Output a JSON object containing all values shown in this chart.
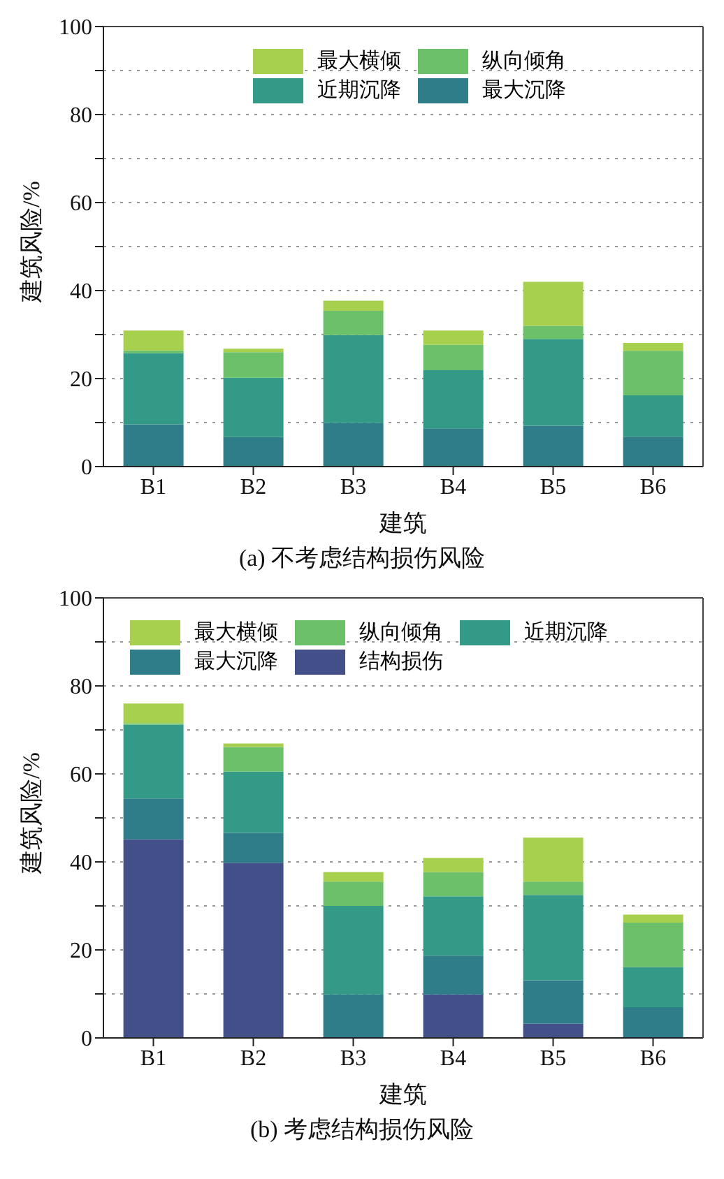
{
  "chart_data": [
    {
      "type": "bar",
      "title": "(a) 不考虑结构损伤风险",
      "xlabel": "建筑",
      "ylabel": "建筑风险/%",
      "categories": [
        "B1",
        "B2",
        "B3",
        "B4",
        "B5",
        "B6"
      ],
      "stacked": true,
      "ylim": [
        0,
        100
      ],
      "yticks": [
        0,
        {
          "value": 10,
          "label": null
        },
        20,
        {
          "value": 30,
          "label": null
        },
        40,
        {
          "value": 50,
          "label": null
        },
        60,
        {
          "value": 70,
          "label": null
        },
        80,
        {
          "value": 90,
          "label": null
        },
        100
      ],
      "grid": "y",
      "legend": "top",
      "series": [
        {
          "name": "最大沉降",
          "color": "#2f7d89",
          "values": [
            9.6,
            6.7,
            9.9,
            8.7,
            9.3,
            6.8
          ]
        },
        {
          "name": "近期沉降",
          "color": "#339a88",
          "values": [
            16.2,
            13.5,
            20.0,
            13.2,
            19.7,
            9.4
          ]
        },
        {
          "name": "纵向倾角",
          "color": "#6cc06a",
          "values": [
            0.6,
            5.8,
            5.5,
            5.8,
            3.0,
            10.1
          ]
        },
        {
          "name": "最大横倾",
          "color": "#a6d04e",
          "values": [
            4.5,
            0.8,
            2.3,
            3.2,
            10.0,
            1.8
          ]
        }
      ]
    },
    {
      "type": "bar",
      "title": "(b) 考虑结构损伤风险",
      "xlabel": "建筑",
      "ylabel": "建筑风险/%",
      "categories": [
        "B1",
        "B2",
        "B3",
        "B4",
        "B5",
        "B6"
      ],
      "stacked": true,
      "ylim": [
        0,
        100
      ],
      "yticks": [
        0,
        {
          "value": 10,
          "label": null
        },
        20,
        {
          "value": 30,
          "label": null
        },
        40,
        {
          "value": 50,
          "label": null
        },
        60,
        {
          "value": 70,
          "label": null
        },
        80,
        {
          "value": 90,
          "label": null
        },
        100
      ],
      "grid": "y",
      "legend": "top",
      "series": [
        {
          "name": "结构损伤",
          "color": "#434f88",
          "values": [
            45.1,
            39.8,
            0,
            9.9,
            3.2,
            0
          ]
        },
        {
          "name": "最大沉降",
          "color": "#2f7d89",
          "values": [
            9.3,
            6.8,
            9.9,
            8.8,
            9.9,
            7.0
          ]
        },
        {
          "name": "近期沉降",
          "color": "#339a88",
          "values": [
            16.8,
            13.9,
            20.1,
            13.5,
            19.4,
            9.1
          ]
        },
        {
          "name": "纵向倾角",
          "color": "#6cc06a",
          "values": [
            0.3,
            5.6,
            5.5,
            5.5,
            3.0,
            10.1
          ]
        },
        {
          "name": "最大横倾",
          "color": "#a6d04e",
          "values": [
            4.5,
            0.8,
            2.2,
            3.2,
            10.0,
            1.8
          ]
        }
      ]
    }
  ]
}
